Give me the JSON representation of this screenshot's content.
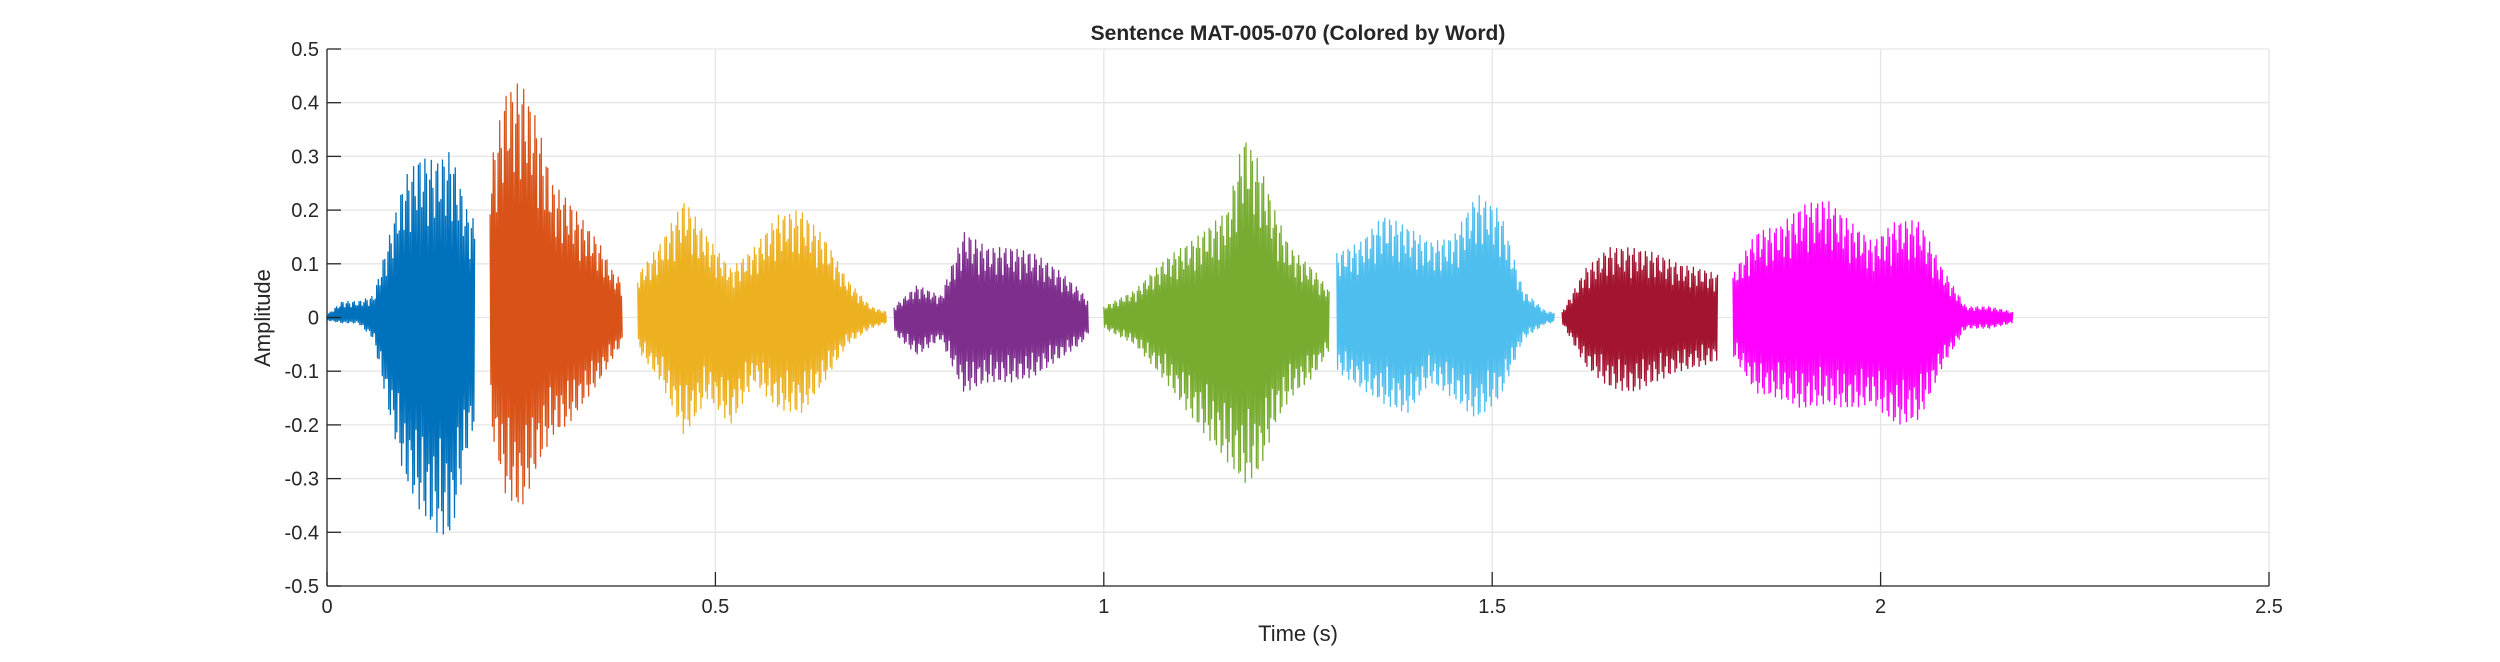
{
  "chart_data": {
    "type": "line",
    "title": "Sentence MAT-005-070 (Colored by Word)",
    "xlabel": "Time (s)",
    "ylabel": "Amplitude",
    "xlim": [
      0,
      2.5
    ],
    "ylim": [
      -0.5,
      0.5
    ],
    "xticks": [
      0,
      0.5,
      1,
      1.5,
      2,
      2.5
    ],
    "xtick_labels": [
      "0",
      "0.5",
      "1",
      "1.5",
      "2",
      "2.5"
    ],
    "yticks": [
      -0.5,
      -0.4,
      -0.3,
      -0.2,
      -0.1,
      0,
      0.1,
      0.2,
      0.3,
      0.4,
      0.5
    ],
    "ytick_labels": [
      "-0.5",
      "-0.4",
      "-0.3",
      "-0.2",
      "-0.1",
      "0",
      "0.1",
      "0.2",
      "0.3",
      "0.4",
      "0.5"
    ],
    "grid": true,
    "legend": "none",
    "series": [
      {
        "color": "#0072BD",
        "x": [
          0,
          0.02,
          0.04,
          0.06,
          0.08,
          0.1,
          0.12,
          0.14,
          0.16,
          0.18,
          0.19
        ],
        "max": [
          0.005,
          0.03,
          0.03,
          0.04,
          0.15,
          0.26,
          0.3,
          0.29,
          0.31,
          0.2,
          0.18
        ],
        "min": [
          -0.005,
          -0.01,
          -0.01,
          -0.04,
          -0.18,
          -0.3,
          -0.36,
          -0.4,
          -0.41,
          -0.25,
          -0.2
        ]
      },
      {
        "color": "#D95319",
        "x": [
          0.21,
          0.23,
          0.25,
          0.27,
          0.29,
          0.31,
          0.33,
          0.35,
          0.37,
          0.38
        ],
        "max": [
          0.28,
          0.42,
          0.44,
          0.37,
          0.25,
          0.22,
          0.18,
          0.14,
          0.08,
          0.07
        ],
        "min": [
          -0.2,
          -0.33,
          -0.36,
          -0.28,
          -0.22,
          -0.2,
          -0.16,
          -0.12,
          -0.07,
          -0.05
        ]
      },
      {
        "color": "#EDB120",
        "x": [
          0.4,
          0.43,
          0.46,
          0.49,
          0.52,
          0.55,
          0.58,
          0.61,
          0.64,
          0.67,
          0.7,
          0.72
        ],
        "max": [
          0.08,
          0.14,
          0.22,
          0.15,
          0.09,
          0.13,
          0.19,
          0.2,
          0.15,
          0.07,
          0.02,
          0.01
        ],
        "min": [
          -0.06,
          -0.12,
          -0.22,
          -0.15,
          -0.2,
          -0.12,
          -0.17,
          -0.18,
          -0.12,
          -0.05,
          -0.02,
          -0.01
        ]
      },
      {
        "color": "#7E2F8E",
        "x": [
          0.73,
          0.76,
          0.79,
          0.82,
          0.85,
          0.88,
          0.91,
          0.94,
          0.97,
          0.98
        ],
        "max": [
          0.02,
          0.06,
          0.04,
          0.16,
          0.13,
          0.13,
          0.12,
          0.09,
          0.05,
          0.03
        ],
        "min": [
          -0.03,
          -0.07,
          -0.04,
          -0.14,
          -0.12,
          -0.12,
          -0.11,
          -0.08,
          -0.05,
          -0.03
        ]
      },
      {
        "color": "#77AC30",
        "x": [
          1.0,
          1.04,
          1.08,
          1.12,
          1.16,
          1.18,
          1.2,
          1.22,
          1.24,
          1.27,
          1.29
        ],
        "max": [
          0.02,
          0.05,
          0.11,
          0.15,
          0.2,
          0.34,
          0.29,
          0.2,
          0.13,
          0.09,
          0.05
        ],
        "min": [
          -0.02,
          -0.05,
          -0.12,
          -0.2,
          -0.27,
          -0.31,
          -0.29,
          -0.2,
          -0.15,
          -0.11,
          -0.06
        ]
      },
      {
        "color": "#4DBEEE",
        "x": [
          1.3,
          1.33,
          1.36,
          1.39,
          1.42,
          1.45,
          1.48,
          1.51,
          1.54,
          1.57,
          1.58
        ],
        "max": [
          0.12,
          0.14,
          0.19,
          0.17,
          0.14,
          0.15,
          0.23,
          0.2,
          0.05,
          0.01,
          0.01
        ],
        "min": [
          -0.1,
          -0.13,
          -0.16,
          -0.18,
          -0.12,
          -0.15,
          -0.19,
          -0.15,
          -0.04,
          -0.01,
          -0.01
        ]
      },
      {
        "color": "#A2142F",
        "x": [
          1.59,
          1.62,
          1.65,
          1.68,
          1.71,
          1.74,
          1.77,
          1.79
        ],
        "max": [
          0.01,
          0.09,
          0.13,
          0.13,
          0.12,
          0.1,
          0.09,
          0.08
        ],
        "min": [
          -0.01,
          -0.09,
          -0.13,
          -0.14,
          -0.12,
          -0.1,
          -0.09,
          -0.08
        ]
      },
      {
        "color": "#FF00FF",
        "x": [
          1.81,
          1.84,
          1.87,
          1.9,
          1.93,
          1.96,
          1.99,
          2.02,
          2.05,
          2.08,
          2.11,
          2.14,
          2.17
        ],
        "max": [
          0.08,
          0.16,
          0.17,
          0.21,
          0.22,
          0.18,
          0.14,
          0.18,
          0.18,
          0.09,
          0.02,
          0.02,
          0.01
        ],
        "min": [
          -0.07,
          -0.14,
          -0.15,
          -0.17,
          -0.16,
          -0.17,
          -0.16,
          -0.2,
          -0.19,
          -0.09,
          -0.02,
          -0.02,
          -0.01
        ]
      }
    ]
  }
}
